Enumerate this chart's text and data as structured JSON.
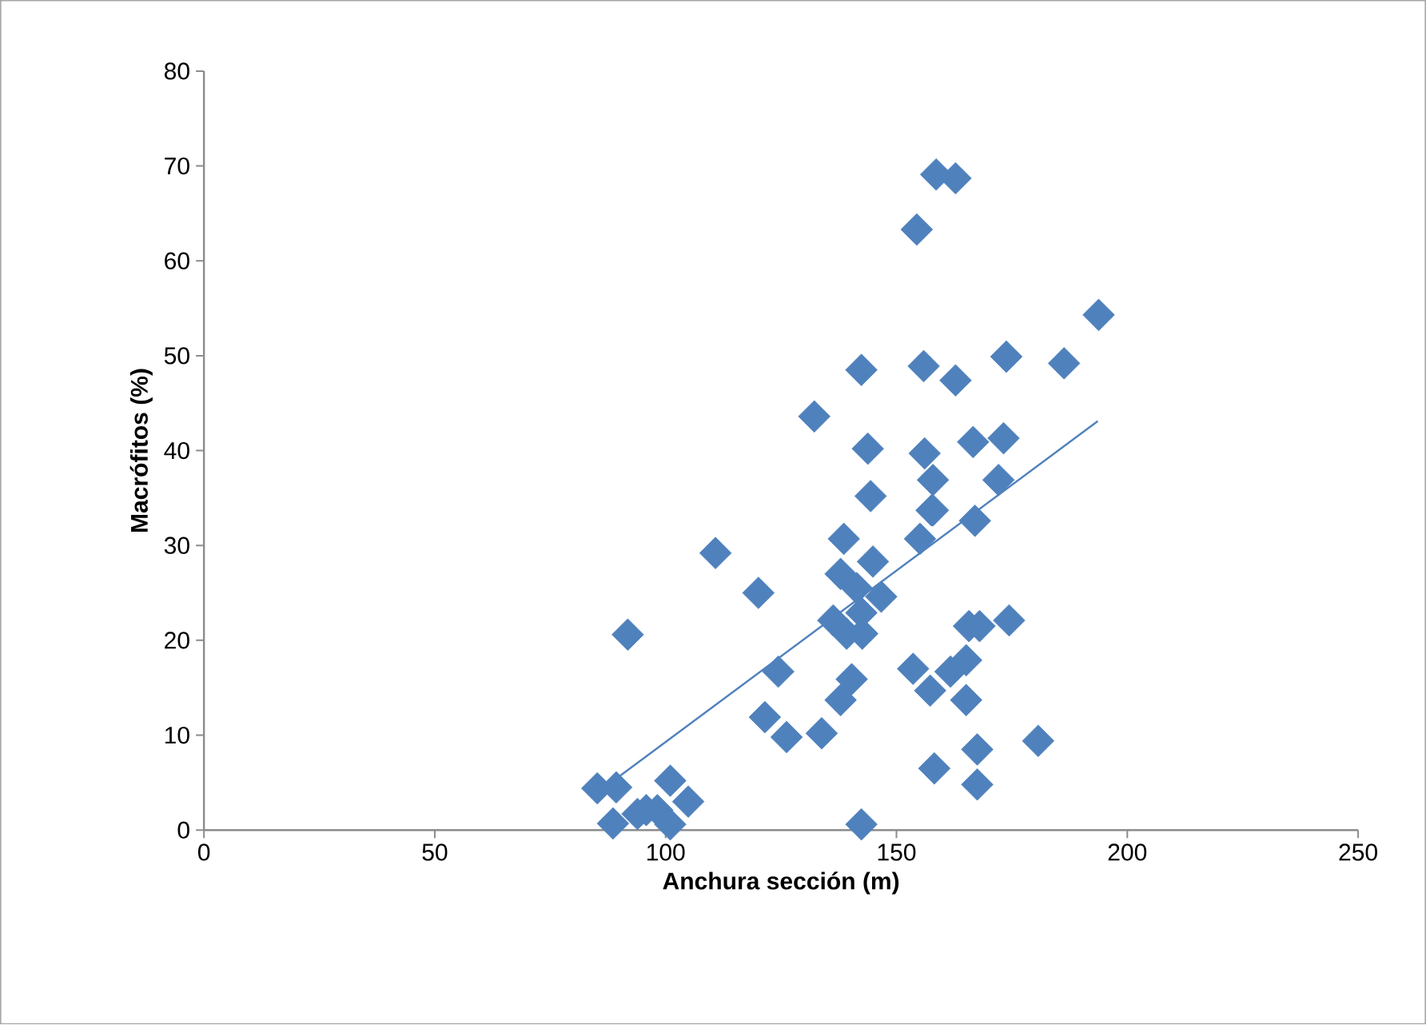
{
  "chart_data": {
    "type": "scatter",
    "xlabel": "Anchura sección (m)",
    "ylabel": "Macrófitos (%)",
    "xlim": [
      0,
      250
    ],
    "ylim": [
      0,
      80
    ],
    "xticks": [
      0,
      50,
      100,
      150,
      200,
      250
    ],
    "yticks": [
      0,
      10,
      20,
      30,
      40,
      50,
      60,
      70,
      80
    ],
    "series": [
      {
        "type": "scatter",
        "marker": "diamond",
        "color": "#4f81bd",
        "x": [
          85.2,
          89.3,
          88.6,
          93.9,
          95.8,
          98.2,
          101,
          101,
          104.9,
          91.8,
          110.8,
          120.1,
          124.4,
          121.5,
          126.2,
          133.8,
          142.4,
          137.9,
          140.3,
          136.3,
          139.2,
          142.6,
          137.9,
          141.4,
          146.7,
          142.4,
          138.6,
          144.9,
          155.1,
          157.6,
          167,
          153.6,
          157.3,
          161.7,
          165.1,
          165.1,
          165.7,
          168,
          174.4,
          158.2,
          167.5,
          167.5,
          180.7,
          158.6,
          162.8,
          154.4,
          193.8,
          142.4,
          155.9,
          162.8,
          173.8,
          186.3,
          132.2,
          143.8,
          156.1,
          166.6,
          173.2,
          144.4,
          157.9,
          172.1,
          157.9
        ],
        "values": [
          4.4,
          4.5,
          0.7,
          1.7,
          2.1,
          2.1,
          0.6,
          5.2,
          3.0,
          20.6,
          29.2,
          25.0,
          16.7,
          11.9,
          9.8,
          10.2,
          0.6,
          13.7,
          15.9,
          22.1,
          20.7,
          20.7,
          27.0,
          25.5,
          24.6,
          22.9,
          30.7,
          28.3,
          30.7,
          33.7,
          32.6,
          17.0,
          14.7,
          16.7,
          17.9,
          13.7,
          21.5,
          21.5,
          22.1,
          6.5,
          8.5,
          4.8,
          9.4,
          69.1,
          68.7,
          63.3,
          54.3,
          48.5,
          48.9,
          47.4,
          49.9,
          49.2,
          43.6,
          40.2,
          39.7,
          40.9,
          41.3,
          35.2,
          36.9,
          36.9,
          33.7
        ]
      },
      {
        "type": "line",
        "marker": "none",
        "line_style": "solid",
        "color": "#4f81bd",
        "x": [
          89.8,
          193.6
        ],
        "values": [
          5.6,
          43.1
        ]
      }
    ]
  }
}
